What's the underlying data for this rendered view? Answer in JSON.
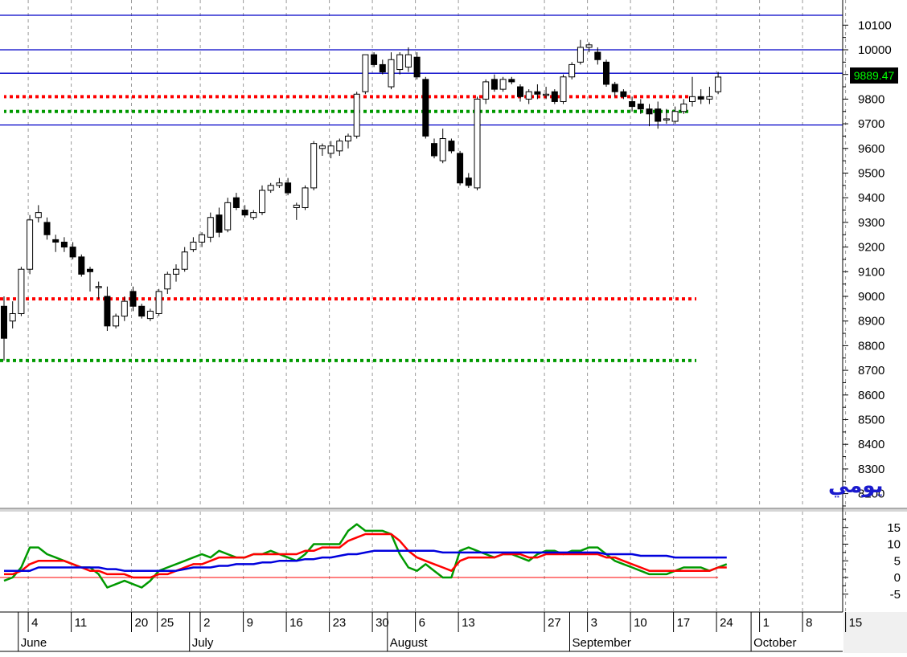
{
  "chart_data": [
    {
      "type": "candlestick",
      "title": "",
      "period_label": "يومي",
      "ylim": [
        8100,
        10150
      ],
      "y_ticks": [
        8200,
        8300,
        8400,
        8500,
        8600,
        8700,
        8800,
        8900,
        9000,
        9100,
        9200,
        9300,
        9400,
        9500,
        9600,
        9700,
        9800,
        9900,
        10000,
        10100
      ],
      "last_price": "9889.47",
      "last_price_color": "#00ff00",
      "grid": "vertical-dashed",
      "horizontal_lines": [
        {
          "value": 10140,
          "color": "#0000c8"
        },
        {
          "value": 10000,
          "color": "#0000c8"
        },
        {
          "value": 9905,
          "color": "#0000c8"
        },
        {
          "value": 9695,
          "color": "#0000c8"
        }
      ],
      "dotted_levels": [
        {
          "value": 8990,
          "from": "May 29",
          "to": "Sep 19",
          "color": "#ff0000"
        },
        {
          "value": 8740,
          "from": "May 29",
          "to": "Sep 19",
          "color": "#009900"
        },
        {
          "value": 9810,
          "from": "Sep 19",
          "to": "Oct 4",
          "color": "#ff0000"
        },
        {
          "value": 9750,
          "from": "Sep 19",
          "to": "Oct 4",
          "color": "#009900"
        }
      ],
      "candles": [
        {
          "d": "May 29",
          "o": 8960,
          "h": 9000,
          "l": 8740,
          "c": 8830
        },
        {
          "d": "May 31",
          "o": 8900,
          "h": 8980,
          "l": 8870,
          "c": 8930
        },
        {
          "d": "Jun 3",
          "o": 8930,
          "h": 9120,
          "l": 8920,
          "c": 9110
        },
        {
          "d": "Jun 4",
          "o": 9110,
          "h": 9330,
          "l": 9090,
          "c": 9310
        },
        {
          "d": "Jun 5",
          "o": 9320,
          "h": 9370,
          "l": 9300,
          "c": 9340
        },
        {
          "d": "Jun 6",
          "o": 9300,
          "h": 9320,
          "l": 9230,
          "c": 9250
        },
        {
          "d": "Jun 7",
          "o": 9230,
          "h": 9250,
          "l": 9180,
          "c": 9220
        },
        {
          "d": "Jun 10",
          "o": 9220,
          "h": 9240,
          "l": 9180,
          "c": 9200
        },
        {
          "d": "Jun 11",
          "o": 9200,
          "h": 9220,
          "l": 9150,
          "c": 9160
        },
        {
          "d": "Jun 12",
          "o": 9160,
          "h": 9170,
          "l": 9080,
          "c": 9090
        },
        {
          "d": "Jun 13",
          "o": 9110,
          "h": 9120,
          "l": 9020,
          "c": 9100
        },
        {
          "d": "Jun 14",
          "o": 9040,
          "h": 9060,
          "l": 8990,
          "c": 9040
        },
        {
          "d": "Jun 17",
          "o": 9000,
          "h": 9040,
          "l": 8860,
          "c": 8880
        },
        {
          "d": "Jun 18",
          "o": 8880,
          "h": 8930,
          "l": 8870,
          "c": 8920
        },
        {
          "d": "Jun 19",
          "o": 8920,
          "h": 9000,
          "l": 8900,
          "c": 8980
        },
        {
          "d": "Jun 20",
          "o": 9020,
          "h": 9040,
          "l": 8940,
          "c": 8960
        },
        {
          "d": "Jun 21",
          "o": 8960,
          "h": 8970,
          "l": 8910,
          "c": 8920
        },
        {
          "d": "Jun 24",
          "o": 8910,
          "h": 8950,
          "l": 8900,
          "c": 8940
        },
        {
          "d": "Jun 25",
          "o": 8930,
          "h": 9030,
          "l": 8920,
          "c": 9020
        },
        {
          "d": "Jun 26",
          "o": 9030,
          "h": 9100,
          "l": 9010,
          "c": 9090
        },
        {
          "d": "Jun 27",
          "o": 9090,
          "h": 9130,
          "l": 9060,
          "c": 9110
        },
        {
          "d": "Jun 28",
          "o": 9110,
          "h": 9200,
          "l": 9100,
          "c": 9180
        },
        {
          "d": "Jul 1",
          "o": 9190,
          "h": 9240,
          "l": 9180,
          "c": 9220
        },
        {
          "d": "Jul 2",
          "o": 9220,
          "h": 9260,
          "l": 9200,
          "c": 9250
        },
        {
          "d": "Jul 3",
          "o": 9240,
          "h": 9340,
          "l": 9220,
          "c": 9320
        },
        {
          "d": "Jul 4",
          "o": 9330,
          "h": 9360,
          "l": 9240,
          "c": 9260
        },
        {
          "d": "Jul 5",
          "o": 9270,
          "h": 9400,
          "l": 9260,
          "c": 9380
        },
        {
          "d": "Jul 8",
          "o": 9400,
          "h": 9420,
          "l": 9350,
          "c": 9360
        },
        {
          "d": "Jul 9",
          "o": 9350,
          "h": 9370,
          "l": 9320,
          "c": 9330
        },
        {
          "d": "Jul 10",
          "o": 9320,
          "h": 9350,
          "l": 9310,
          "c": 9340
        },
        {
          "d": "Jul 11",
          "o": 9340,
          "h": 9450,
          "l": 9330,
          "c": 9430
        },
        {
          "d": "Jul 12",
          "o": 9430,
          "h": 9460,
          "l": 9420,
          "c": 9450
        },
        {
          "d": "Jul 15",
          "o": 9450,
          "h": 9480,
          "l": 9440,
          "c": 9460
        },
        {
          "d": "Jul 16",
          "o": 9460,
          "h": 9480,
          "l": 9410,
          "c": 9420
        },
        {
          "d": "Jul 17",
          "o": 9360,
          "h": 9380,
          "l": 9310,
          "c": 9370
        },
        {
          "d": "Jul 18",
          "o": 9360,
          "h": 9450,
          "l": 9350,
          "c": 9440
        },
        {
          "d": "Jul 19",
          "o": 9440,
          "h": 9630,
          "l": 9430,
          "c": 9620
        },
        {
          "d": "Jul 22",
          "o": 9600,
          "h": 9620,
          "l": 9570,
          "c": 9610
        },
        {
          "d": "Jul 23",
          "o": 9580,
          "h": 9630,
          "l": 9560,
          "c": 9610
        },
        {
          "d": "Jul 24",
          "o": 9590,
          "h": 9640,
          "l": 9570,
          "c": 9630
        },
        {
          "d": "Jul 25",
          "o": 9630,
          "h": 9660,
          "l": 9600,
          "c": 9650
        },
        {
          "d": "Jul 26",
          "o": 9650,
          "h": 9830,
          "l": 9640,
          "c": 9820
        },
        {
          "d": "Jul 29",
          "o": 9830,
          "h": 9980,
          "l": 9820,
          "c": 9980
        },
        {
          "d": "Jul 30",
          "o": 9980,
          "h": 9990,
          "l": 9930,
          "c": 9940
        },
        {
          "d": "Jul 31",
          "o": 9940,
          "h": 9960,
          "l": 9900,
          "c": 9910
        },
        {
          "d": "Aug 1",
          "o": 9850,
          "h": 9990,
          "l": 9840,
          "c": 9960
        },
        {
          "d": "Aug 2",
          "o": 9920,
          "h": 9990,
          "l": 9900,
          "c": 9980
        },
        {
          "d": "Aug 5",
          "o": 9930,
          "h": 10010,
          "l": 9910,
          "c": 9980
        },
        {
          "d": "Aug 6",
          "o": 9970,
          "h": 9990,
          "l": 9880,
          "c": 9890
        },
        {
          "d": "Aug 7",
          "o": 9880,
          "h": 9890,
          "l": 9640,
          "c": 9650
        },
        {
          "d": "Aug 8",
          "o": 9620,
          "h": 9640,
          "l": 9560,
          "c": 9570
        },
        {
          "d": "Aug 9",
          "o": 9550,
          "h": 9680,
          "l": 9540,
          "c": 9640
        },
        {
          "d": "Aug 12",
          "o": 9630,
          "h": 9640,
          "l": 9580,
          "c": 9590
        },
        {
          "d": "Aug 13",
          "o": 9580,
          "h": 9590,
          "l": 9450,
          "c": 9460
        },
        {
          "d": "Aug 14",
          "o": 9480,
          "h": 9500,
          "l": 9440,
          "c": 9450
        },
        {
          "d": "Aug 15",
          "o": 9440,
          "h": 9810,
          "l": 9430,
          "c": 9800
        },
        {
          "d": "Aug 16",
          "o": 9800,
          "h": 9880,
          "l": 9780,
          "c": 9870
        },
        {
          "d": "Aug 19",
          "o": 9880,
          "h": 9900,
          "l": 9830,
          "c": 9840
        },
        {
          "d": "Aug 20",
          "o": 9840,
          "h": 9890,
          "l": 9830,
          "c": 9880
        },
        {
          "d": "Aug 21",
          "o": 9880,
          "h": 9890,
          "l": 9860,
          "c": 9870
        },
        {
          "d": "Aug 22",
          "o": 9850,
          "h": 9860,
          "l": 9790,
          "c": 9810
        },
        {
          "d": "Aug 23",
          "o": 9800,
          "h": 9840,
          "l": 9780,
          "c": 9830
        },
        {
          "d": "Aug 26",
          "o": 9830,
          "h": 9860,
          "l": 9800,
          "c": 9820
        },
        {
          "d": "Aug 27",
          "o": 9820,
          "h": 9850,
          "l": 9800,
          "c": 9820
        },
        {
          "d": "Aug 28",
          "o": 9830,
          "h": 9840,
          "l": 9780,
          "c": 9790
        },
        {
          "d": "Aug 29",
          "o": 9790,
          "h": 9900,
          "l": 9780,
          "c": 9890
        },
        {
          "d": "Aug 30",
          "o": 9890,
          "h": 9950,
          "l": 9880,
          "c": 9940
        },
        {
          "d": "Sep 2",
          "o": 9950,
          "h": 10040,
          "l": 9940,
          "c": 10010
        },
        {
          "d": "Sep 3",
          "o": 10010,
          "h": 10030,
          "l": 9990,
          "c": 10020
        },
        {
          "d": "Sep 4",
          "o": 9990,
          "h": 10010,
          "l": 9940,
          "c": 9960
        },
        {
          "d": "Sep 5",
          "o": 9950,
          "h": 9960,
          "l": 9850,
          "c": 9860
        },
        {
          "d": "Sep 6",
          "o": 9860,
          "h": 9870,
          "l": 9810,
          "c": 9830
        },
        {
          "d": "Sep 9",
          "o": 9830,
          "h": 9840,
          "l": 9800,
          "c": 9810
        },
        {
          "d": "Sep 10",
          "o": 9790,
          "h": 9810,
          "l": 9750,
          "c": 9770
        },
        {
          "d": "Sep 11",
          "o": 9780,
          "h": 9800,
          "l": 9740,
          "c": 9760
        },
        {
          "d": "Sep 12",
          "o": 9760,
          "h": 9780,
          "l": 9690,
          "c": 9740
        },
        {
          "d": "Sep 13",
          "o": 9760,
          "h": 9790,
          "l": 9680,
          "c": 9710
        },
        {
          "d": "Sep 16",
          "o": 9720,
          "h": 9760,
          "l": 9700,
          "c": 9720
        },
        {
          "d": "Sep 17",
          "o": 9710,
          "h": 9770,
          "l": 9700,
          "c": 9750
        },
        {
          "d": "Sep 18",
          "o": 9750,
          "h": 9800,
          "l": 9740,
          "c": 9780
        },
        {
          "d": "Sep 19",
          "o": 9790,
          "h": 9890,
          "l": 9770,
          "c": 9810
        },
        {
          "d": "Sep 20",
          "o": 9810,
          "h": 9840,
          "l": 9780,
          "c": 9800
        },
        {
          "d": "Sep 23",
          "o": 9800,
          "h": 9850,
          "l": 9780,
          "c": 9810
        },
        {
          "d": "Sep 24",
          "o": 9830,
          "h": 9910,
          "l": 9820,
          "c": 9889.47
        }
      ]
    },
    {
      "type": "line",
      "title": "",
      "ylim": [
        -8,
        18
      ],
      "y_ticks": [
        -5,
        0,
        5,
        10,
        15
      ],
      "x_tick_labels": [
        "4",
        "11",
        "20",
        "25",
        "2",
        "9",
        "16",
        "23",
        "30",
        "6",
        "13",
        "27",
        "3",
        "10",
        "17",
        "24",
        "1",
        "8",
        "15"
      ],
      "month_labels": [
        "June",
        "July",
        "August",
        "September",
        "October"
      ],
      "zero_line_color": "#ff0000",
      "series": [
        {
          "color": "#009900",
          "values": [
            -1,
            0,
            3,
            9,
            9,
            7,
            6,
            5,
            4,
            3,
            3,
            1,
            -3,
            -2,
            -1,
            -2,
            -3,
            -1,
            2,
            3,
            4,
            5,
            6,
            7,
            6,
            8,
            7,
            6,
            6,
            7,
            7,
            8,
            7,
            6,
            5,
            7,
            10,
            10,
            10,
            10,
            14,
            16,
            14,
            14,
            14,
            13,
            7,
            3,
            2,
            4,
            2,
            0,
            0,
            8,
            9,
            8,
            7,
            6,
            7,
            7,
            6,
            5,
            7,
            8,
            8,
            7,
            8,
            8,
            9,
            9,
            7,
            5,
            4,
            3,
            2,
            1,
            1,
            1,
            2,
            3,
            3,
            3,
            2,
            3,
            4
          ]
        },
        {
          "color": "#ff0000",
          "values": [
            1,
            1,
            2,
            4,
            5,
            5,
            5,
            5,
            4,
            3,
            2,
            2,
            1,
            1,
            1,
            0,
            0,
            0,
            1,
            1,
            2,
            3,
            4,
            4,
            5,
            6,
            6,
            6,
            6,
            7,
            7,
            7,
            7,
            7,
            7,
            8,
            8,
            9,
            9,
            9,
            11,
            12,
            13,
            13,
            13,
            13,
            11,
            8,
            6,
            5,
            4,
            3,
            2,
            5,
            6,
            6,
            6,
            6,
            7,
            7,
            7,
            6,
            6,
            7,
            7,
            7,
            7,
            7,
            7,
            7,
            6,
            6,
            5,
            4,
            3,
            2,
            2,
            2,
            2,
            2,
            2,
            2,
            2,
            3,
            3
          ]
        },
        {
          "color": "#0000dd",
          "values": [
            2,
            2,
            2,
            2,
            3,
            3,
            3,
            3,
            3,
            3,
            3,
            3,
            2.5,
            2.5,
            2,
            2,
            2,
            2,
            2,
            2,
            2,
            2.5,
            3,
            3,
            3,
            3.5,
            3.5,
            4,
            4,
            4,
            4.5,
            4.5,
            5,
            5,
            5,
            5.5,
            5.5,
            6,
            6,
            6.5,
            7,
            7,
            7.5,
            8,
            8,
            8,
            8,
            8,
            8,
            8,
            8,
            7.5,
            7.5,
            7.5,
            7.5,
            7.5,
            7.5,
            7.5,
            7.5,
            7.5,
            7.5,
            7.5,
            7.5,
            7.5,
            7.5,
            7.5,
            7.5,
            7.5,
            7.5,
            7.5,
            7,
            7,
            7,
            7,
            6.5,
            6.5,
            6.5,
            6.5,
            6,
            6,
            6,
            6,
            6,
            6,
            6
          ]
        }
      ]
    }
  ]
}
